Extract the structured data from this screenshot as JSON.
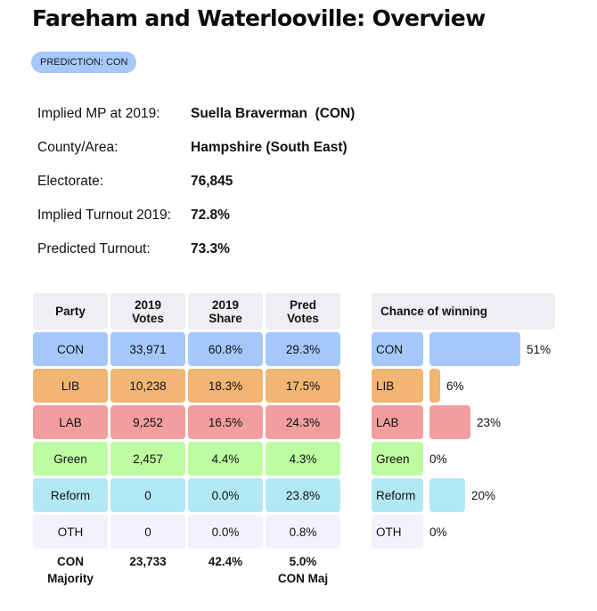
{
  "page": {
    "title": "Fareham and Waterlooville: Overview",
    "prediction_badge": "PREDICTION: CON"
  },
  "info": [
    {
      "label": "Implied MP at 2019:",
      "value": "Suella Braverman  (CON)"
    },
    {
      "label": "County/Area:",
      "value": "Hampshire (South East)"
    },
    {
      "label": "Electorate:",
      "value": "76,845"
    },
    {
      "label": "Implied Turnout 2019:",
      "value": "72.8%"
    },
    {
      "label": "Predicted Turnout:",
      "value": "73.3%"
    }
  ],
  "results_table": {
    "headers": [
      "Party",
      "2019 Votes",
      "2019 Share",
      "Pred Votes"
    ],
    "header_lines": [
      [
        "Party"
      ],
      [
        "2019",
        "Votes"
      ],
      [
        "2019",
        "Share"
      ],
      [
        "Pred",
        "Votes"
      ]
    ],
    "rows": [
      {
        "party": "CON",
        "votes_2019": "33,971",
        "share_2019": "60.8%",
        "pred_votes": "29.3%",
        "color": "#a5c8fb"
      },
      {
        "party": "LIB",
        "votes_2019": "10,238",
        "share_2019": "18.3%",
        "pred_votes": "17.5%",
        "color": "#f2b574"
      },
      {
        "party": "LAB",
        "votes_2019": "9,252",
        "share_2019": "16.5%",
        "pred_votes": "24.3%",
        "color": "#f29e9e"
      },
      {
        "party": "Green",
        "votes_2019": "2,457",
        "share_2019": "4.4%",
        "pred_votes": "4.3%",
        "color": "#bdfca0"
      },
      {
        "party": "Reform",
        "votes_2019": "0",
        "share_2019": "0.0%",
        "pred_votes": "23.8%",
        "color": "#b1e8f3"
      },
      {
        "party": "OTH",
        "votes_2019": "0",
        "share_2019": "0.0%",
        "pred_votes": "0.8%",
        "color": "#f4f1fd"
      }
    ],
    "footer": {
      "label_lines": [
        "CON",
        "Majority"
      ],
      "votes_2019": "23,733",
      "share_2019": "42.4%",
      "pred_lines": [
        "5.0%",
        "CON Maj"
      ]
    }
  },
  "chance_of_winning": {
    "title": "Chance of winning",
    "rows": [
      {
        "party": "CON",
        "percent": 51,
        "label": "51%",
        "color": "#a5c8fb"
      },
      {
        "party": "LIB",
        "percent": 6,
        "label": "6%",
        "color": "#f2b574"
      },
      {
        "party": "LAB",
        "percent": 23,
        "label": "23%",
        "color": "#f29e9e"
      },
      {
        "party": "Green",
        "percent": 0,
        "label": "0%",
        "color": "#bdfca0"
      },
      {
        "party": "Reform",
        "percent": 20,
        "label": "20%",
        "color": "#b1e8f3"
      },
      {
        "party": "OTH",
        "percent": 0,
        "label": "0%",
        "color": "#f4f1fd"
      }
    ]
  }
}
